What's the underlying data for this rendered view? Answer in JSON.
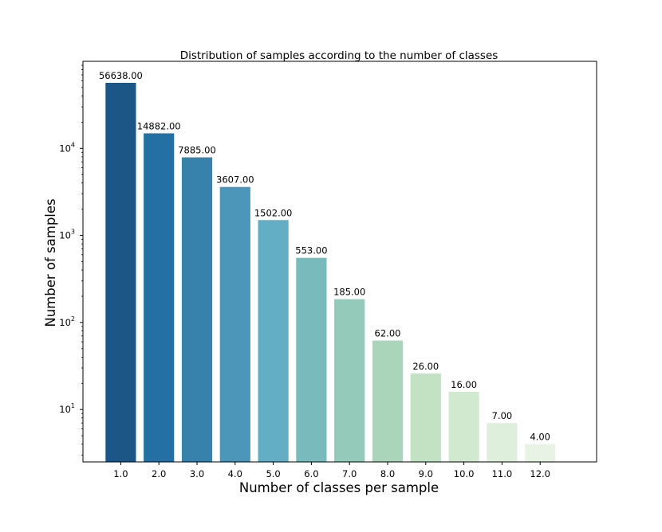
{
  "chart_data": {
    "type": "bar",
    "title": "Distribution of samples according to the number of classes",
    "xlabel": "Number of classes per sample",
    "ylabel": "Number of samples",
    "yscale": "log",
    "ylim": [
      2.5,
      100000
    ],
    "y_ticks": [
      {
        "value": 10,
        "base": "10",
        "exp": "1"
      },
      {
        "value": 100,
        "base": "10",
        "exp": "2"
      },
      {
        "value": 1000,
        "base": "10",
        "exp": "3"
      },
      {
        "value": 10000,
        "base": "10",
        "exp": "4"
      }
    ],
    "categories": [
      "1.0",
      "2.0",
      "3.0",
      "4.0",
      "5.0",
      "6.0",
      "7.0",
      "8.0",
      "9.0",
      "10.0",
      "11.0",
      "12.0"
    ],
    "values": [
      56638,
      14882,
      7885,
      3607,
      1502,
      553,
      185,
      62,
      26,
      16,
      7,
      4
    ],
    "value_labels": [
      "56638.00",
      "14882.00",
      "7885.00",
      "3607.00",
      "1502.00",
      "553.00",
      "185.00",
      "62.00",
      "26.00",
      "16.00",
      "7.00",
      "4.00"
    ],
    "colors": [
      "#1b5687",
      "#2470a4",
      "#3782ad",
      "#4c97b9",
      "#63adc5",
      "#79bbbc",
      "#93cab9",
      "#abd5bb",
      "#c3e2c4",
      "#d1e9cf",
      "#deefdb",
      "#e8f3e6"
    ],
    "grid": false,
    "legend": "none"
  }
}
